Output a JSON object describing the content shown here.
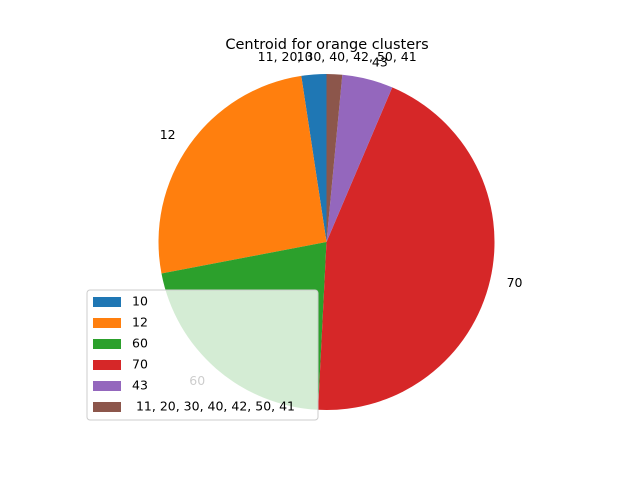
{
  "chart_data": {
    "type": "pie",
    "title": "Centroid for orange clusters",
    "slices": [
      {
        "label": "10",
        "value": 2.4,
        "color": "#1f77b4"
      },
      {
        "label": "12",
        "value": 25.6,
        "color": "#ff7f0e"
      },
      {
        "label": "60",
        "value": 21.2,
        "color": "#2ca02c"
      },
      {
        "label": "70",
        "value": 44.4,
        "color": "#d62728"
      },
      {
        "label": "43",
        "value": 4.9,
        "color": "#9467bd"
      },
      {
        "label": " 11, 20, 30, 40, 42, 50, 41",
        "value": 1.5,
        "color": "#8c564b"
      }
    ],
    "start_angle_deg": 90,
    "direction": "counterclockwise",
    "legend": "lower-left"
  }
}
